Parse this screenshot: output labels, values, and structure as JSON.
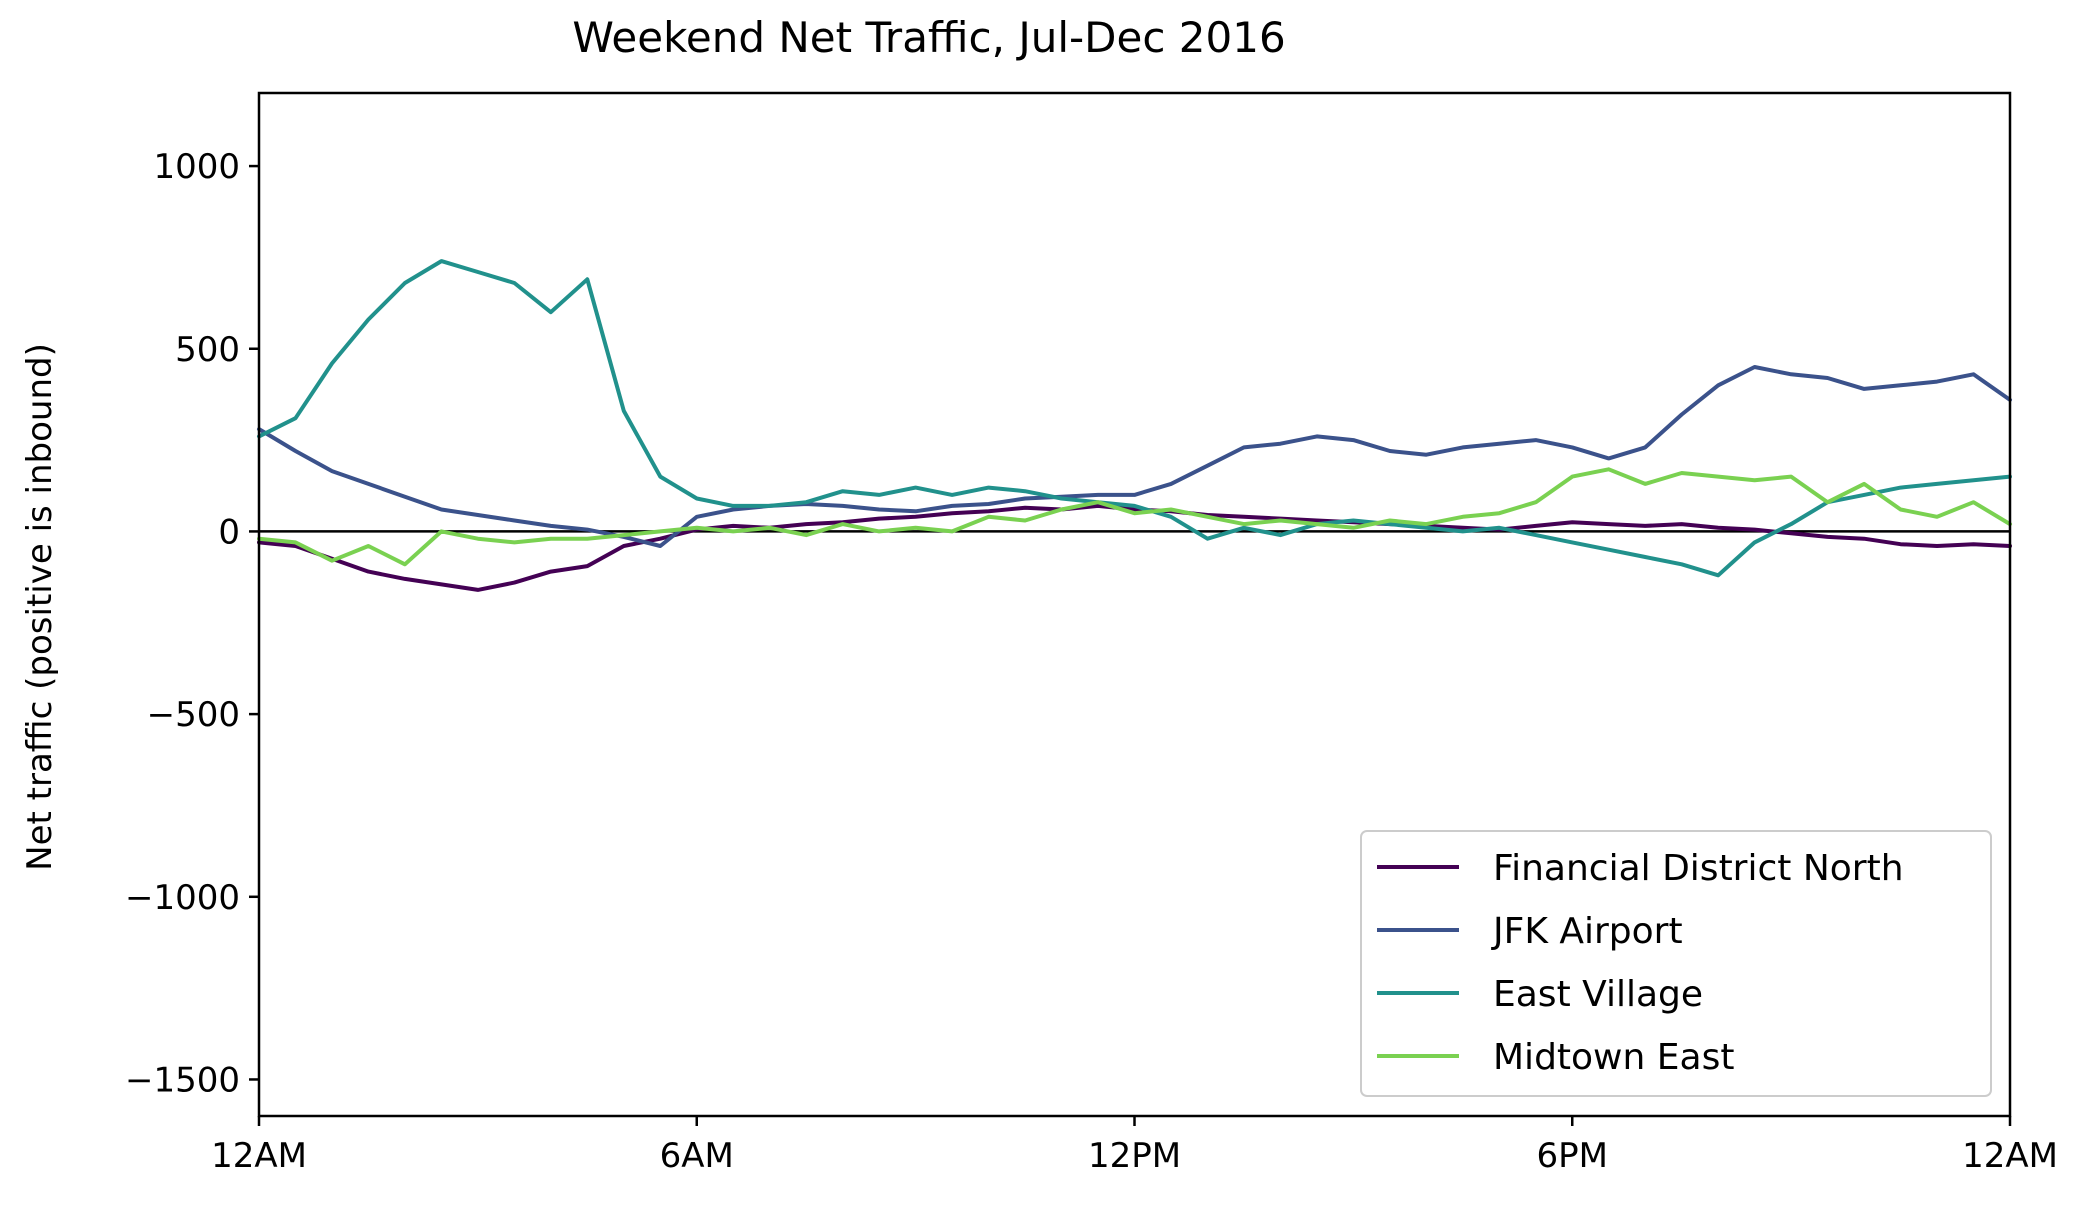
{
  "chart_data": {
    "type": "line",
    "title": "Weekend Net Traffic, Jul-Dec 2016",
    "xlabel": "",
    "ylabel": "Net traffic (positive is inbound)",
    "x_unit": "hour of day",
    "xlim": [
      0,
      24
    ],
    "ylim": [
      -1600,
      1200
    ],
    "x_ticks": [
      {
        "value": 0,
        "label": "12AM"
      },
      {
        "value": 6,
        "label": "6AM"
      },
      {
        "value": 12,
        "label": "12PM"
      },
      {
        "value": 18,
        "label": "6PM"
      },
      {
        "value": 24,
        "label": "12AM"
      }
    ],
    "y_ticks": [
      {
        "value": 1000,
        "label": "1000"
      },
      {
        "value": 500,
        "label": "500"
      },
      {
        "value": 0,
        "label": "0"
      },
      {
        "value": -500,
        "label": "−500"
      },
      {
        "value": -1000,
        "label": "−1000"
      },
      {
        "value": -1500,
        "label": "−1500"
      }
    ],
    "reference_line_y": 0,
    "grid": false,
    "legend_position": "lower-right",
    "x": [
      0,
      0.5,
      1,
      1.5,
      2,
      2.5,
      3,
      3.5,
      4,
      4.5,
      5,
      5.5,
      6,
      6.5,
      7,
      7.5,
      8,
      8.5,
      9,
      9.5,
      10,
      10.5,
      11,
      11.5,
      12,
      12.5,
      13,
      13.5,
      14,
      14.5,
      15,
      15.5,
      16,
      16.5,
      17,
      17.5,
      18,
      18.5,
      19,
      19.5,
      20,
      20.5,
      21,
      21.5,
      22,
      22.5,
      23,
      23.5,
      24
    ],
    "series": [
      {
        "name": "Financial District North",
        "color": "#440154",
        "values": [
          -30,
          -40,
          -75,
          -110,
          -130,
          -145,
          -160,
          -140,
          -110,
          -95,
          -40,
          -20,
          5,
          15,
          10,
          20,
          25,
          35,
          40,
          50,
          55,
          65,
          60,
          70,
          60,
          55,
          45,
          40,
          35,
          30,
          25,
          20,
          15,
          10,
          5,
          15,
          25,
          20,
          15,
          20,
          10,
          5,
          -5,
          -15,
          -20,
          -35,
          -40,
          -35,
          -40
        ]
      },
      {
        "name": "JFK Airport",
        "color": "#3b528b",
        "values": [
          280,
          220,
          165,
          130,
          95,
          60,
          45,
          30,
          15,
          5,
          -15,
          -40,
          40,
          60,
          70,
          75,
          70,
          60,
          55,
          70,
          75,
          90,
          95,
          100,
          100,
          130,
          180,
          230,
          240,
          260,
          250,
          220,
          210,
          230,
          240,
          250,
          230,
          200,
          230,
          320,
          400,
          450,
          430,
          420,
          390,
          400,
          410,
          430,
          360
        ]
      },
      {
        "name": "East Village",
        "color": "#21918c",
        "values": [
          260,
          310,
          460,
          580,
          680,
          740,
          710,
          680,
          600,
          690,
          330,
          150,
          90,
          70,
          70,
          80,
          110,
          100,
          120,
          100,
          120,
          110,
          90,
          80,
          70,
          40,
          -20,
          10,
          -10,
          20,
          30,
          20,
          10,
          0,
          10,
          -10,
          -30,
          -50,
          -70,
          -90,
          -120,
          -30,
          20,
          80,
          100,
          120,
          130,
          140,
          150
        ]
      },
      {
        "name": "Midtown East",
        "color": "#7ad151",
        "values": [
          -20,
          -30,
          -80,
          -40,
          -90,
          0,
          -20,
          -30,
          -20,
          -20,
          -10,
          0,
          10,
          0,
          10,
          -10,
          20,
          0,
          10,
          0,
          40,
          30,
          60,
          80,
          50,
          60,
          40,
          20,
          30,
          20,
          10,
          30,
          20,
          40,
          50,
          80,
          150,
          170,
          130,
          160,
          150,
          140,
          150,
          80,
          130,
          60,
          40,
          80,
          20
        ]
      }
    ]
  }
}
